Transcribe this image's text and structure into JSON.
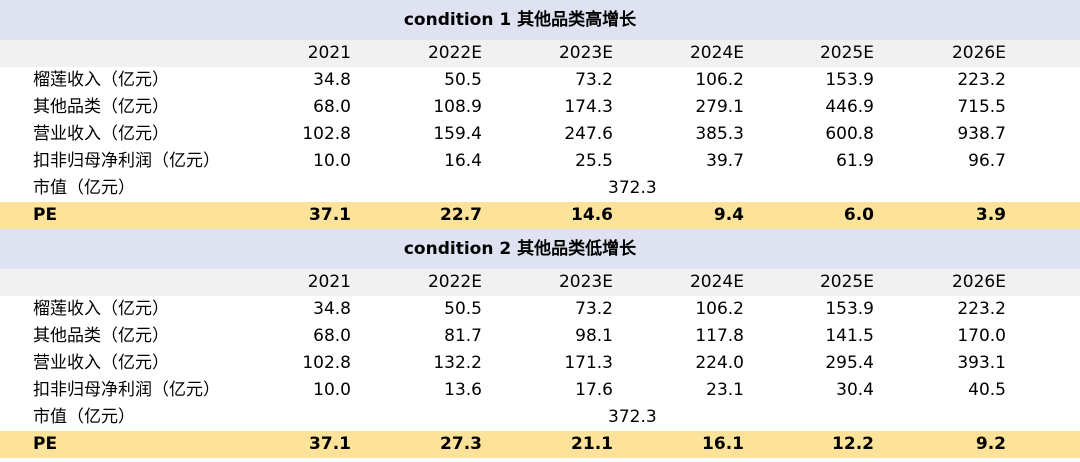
{
  "sections": [
    {
      "title": "condition 1 其他品类高增长",
      "years": [
        "2021",
        "2022E",
        "2023E",
        "2024E",
        "2025E",
        "2026E"
      ],
      "rows": [
        {
          "label": "榴莲收入（亿元）",
          "values": [
            "34.8",
            "50.5",
            "73.2",
            "106.2",
            "153.9",
            "223.2"
          ]
        },
        {
          "label": "其他品类（亿元）",
          "values": [
            "68.0",
            "108.9",
            "174.3",
            "279.1",
            "446.9",
            "715.5"
          ]
        },
        {
          "label": "营业收入（亿元）",
          "values": [
            "102.8",
            "159.4",
            "247.6",
            "385.3",
            "600.8",
            "938.7"
          ]
        },
        {
          "label": "扣非归母净利润（亿元）",
          "values": [
            "10.0",
            "16.4",
            "25.5",
            "39.7",
            "61.9",
            "96.7"
          ]
        }
      ],
      "market_cap": {
        "label": "市值（亿元）",
        "value": "372.3"
      },
      "pe": {
        "label": "PE",
        "values": [
          "37.1",
          "22.7",
          "14.6",
          "9.4",
          "6.0",
          "3.9"
        ]
      }
    },
    {
      "title": "condition 2 其他品类低增长",
      "years": [
        "2021",
        "2022E",
        "2023E",
        "2024E",
        "2025E",
        "2026E"
      ],
      "rows": [
        {
          "label": "榴莲收入（亿元）",
          "values": [
            "34.8",
            "50.5",
            "73.2",
            "106.2",
            "153.9",
            "223.2"
          ]
        },
        {
          "label": "其他品类（亿元）",
          "values": [
            "68.0",
            "81.7",
            "98.1",
            "117.8",
            "141.5",
            "170.0"
          ]
        },
        {
          "label": "营业收入（亿元）",
          "values": [
            "102.8",
            "132.2",
            "171.3",
            "224.0",
            "295.4",
            "393.1"
          ]
        },
        {
          "label": "扣非归母净利润（亿元）",
          "values": [
            "10.0",
            "13.6",
            "17.6",
            "23.1",
            "30.4",
            "40.5"
          ]
        }
      ],
      "market_cap": {
        "label": "市值（亿元）",
        "value": "372.3"
      },
      "pe": {
        "label": "PE",
        "values": [
          "37.1",
          "27.3",
          "21.1",
          "16.1",
          "12.2",
          "9.2"
        ]
      }
    }
  ],
  "colors": {
    "banner_bg": "#dfe3f1",
    "header_bg": "#f1f1f1",
    "pe_bg": "#fde399"
  }
}
